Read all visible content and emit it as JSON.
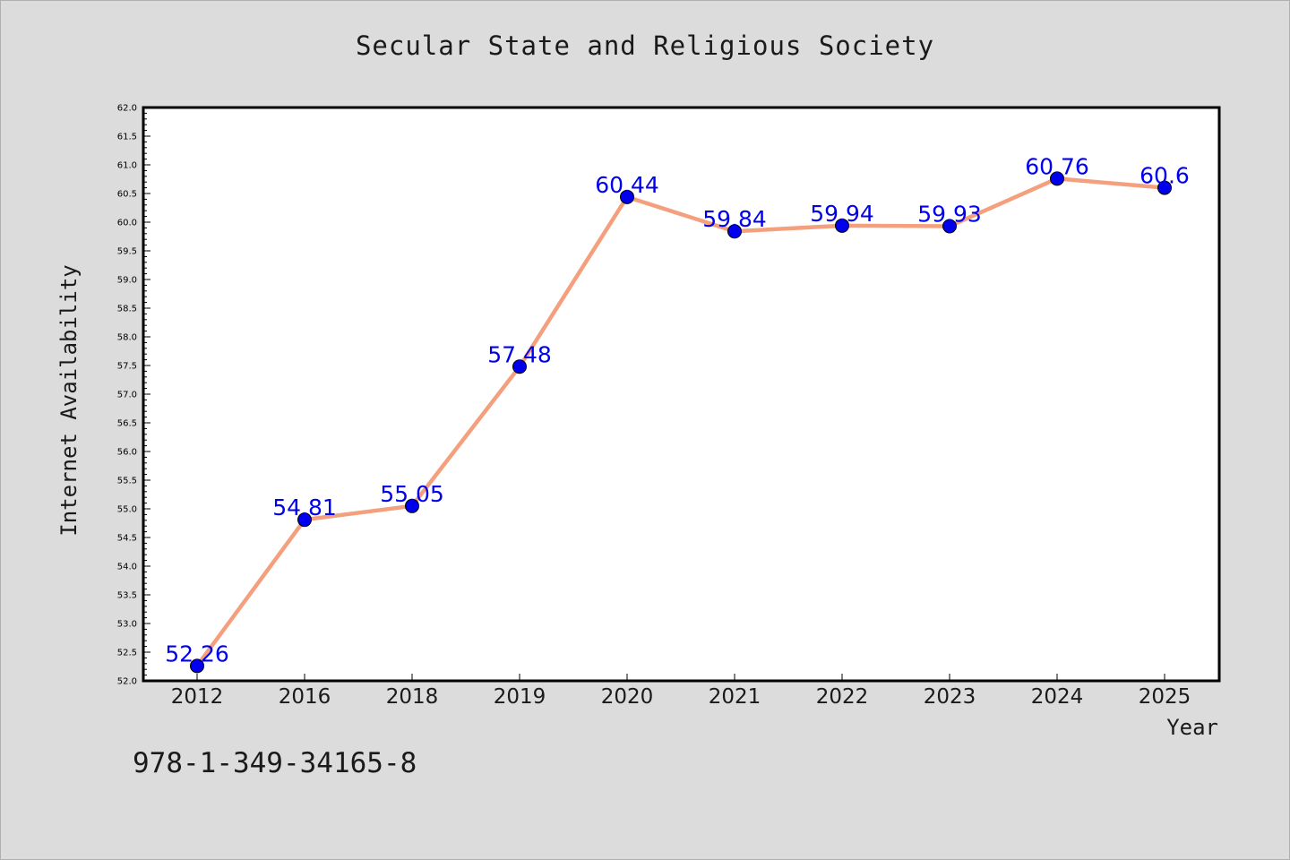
{
  "title": "Secular State and Religious Society",
  "footer": "978-1-349-34165-8",
  "chart_data": {
    "type": "line",
    "title": "Secular State and Religious Society",
    "xlabel": "Year",
    "ylabel": "Internet Availability",
    "categories": [
      "2012",
      "2016",
      "2018",
      "2019",
      "2020",
      "2021",
      "2022",
      "2023",
      "2024",
      "2025"
    ],
    "series": [
      {
        "values": [
          52.26,
          54.81,
          55.05,
          57.48,
          60.44,
          59.84,
          59.94,
          59.93,
          60.76,
          60.6
        ],
        "labels": [
          "52.26",
          "54.81",
          "55.05",
          "57.48",
          "60.44",
          "59.84",
          "59.94",
          "59.93",
          "60.76",
          "60.6"
        ],
        "line_color": "#f4a07e",
        "marker_color": "#0000ee"
      }
    ],
    "ylim": [
      52.0,
      62.0
    ],
    "yticks": [
      "52.0",
      "52.5",
      "53.0",
      "53.5",
      "54.0",
      "54.5",
      "55.0",
      "55.5",
      "56.0",
      "56.5",
      "57.0",
      "57.5",
      "58.0",
      "58.5",
      "59.0",
      "59.5",
      "60.0",
      "60.5",
      "61.0",
      "61.5",
      "62.0"
    ],
    "grid": false,
    "legend": "none"
  }
}
